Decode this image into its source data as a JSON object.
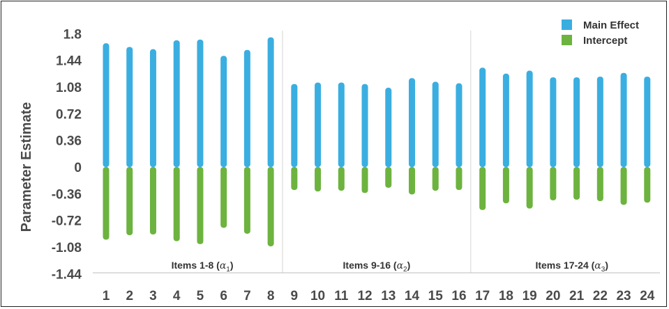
{
  "chart_data": {
    "type": "bar",
    "ylabel": "Parameter Estimate",
    "xlabel": "",
    "ylim": [
      -1.44,
      1.8
    ],
    "yticks": [
      "1.8",
      "1.44",
      "1.08",
      "0.72",
      "0.36",
      "0",
      "-0.36",
      "-0.72",
      "-1.08",
      "-1.44"
    ],
    "yticks_values": [
      1.8,
      1.44,
      1.08,
      0.72,
      0.36,
      0,
      -0.36,
      -0.72,
      -1.08,
      -1.44
    ],
    "categories": [
      "1",
      "2",
      "3",
      "4",
      "5",
      "6",
      "7",
      "8",
      "9",
      "10",
      "11",
      "12",
      "13",
      "14",
      "15",
      "16",
      "17",
      "18",
      "19",
      "20",
      "21",
      "22",
      "23",
      "24"
    ],
    "groups": [
      {
        "label": "Items 1-8 (",
        "symbol": "α",
        "sub": "1",
        "suffix": ")"
      },
      {
        "label": "Items 9-16 (",
        "symbol": "α",
        "sub": "2",
        "suffix": ")"
      },
      {
        "label": "Items 17-24 (",
        "symbol": "α",
        "sub": "3",
        "suffix": ")"
      }
    ],
    "series": [
      {
        "name": "Main Effect",
        "color": "#3aaee0",
        "values": [
          1.67,
          1.62,
          1.59,
          1.71,
          1.72,
          1.5,
          1.58,
          1.75,
          1.12,
          1.14,
          1.14,
          1.12,
          1.07,
          1.2,
          1.15,
          1.13,
          1.34,
          1.26,
          1.3,
          1.21,
          1.21,
          1.22,
          1.27,
          1.22
        ]
      },
      {
        "name": "Intercept",
        "color": "#6db33f",
        "values": [
          -0.98,
          -0.92,
          -0.91,
          -1.0,
          -1.04,
          -0.82,
          -0.9,
          -1.07,
          -0.31,
          -0.33,
          -0.32,
          -0.35,
          -0.28,
          -0.37,
          -0.32,
          -0.31,
          -0.58,
          -0.49,
          -0.56,
          -0.45,
          -0.44,
          -0.46,
          -0.51,
          -0.48
        ]
      }
    ],
    "legend": {
      "position": "top-right"
    },
    "grid": {
      "x": false,
      "y": false,
      "group_separators": true
    }
  }
}
